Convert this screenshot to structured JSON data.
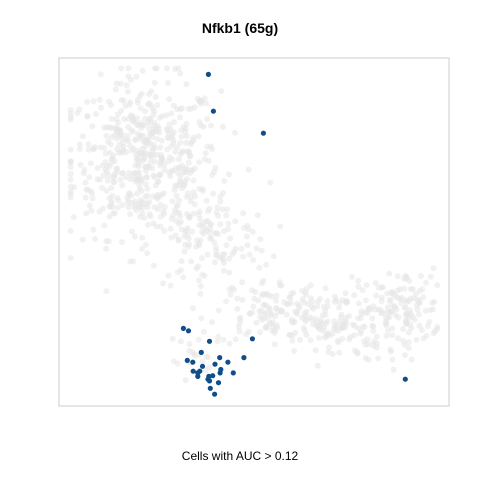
{
  "chart_data": {
    "type": "scatter",
    "title": "Nfkb1 (65g)",
    "xlabel": "Cells with AUC > 0.12",
    "ylabel": "",
    "xlim": [
      0,
      100
    ],
    "ylim": [
      0,
      100
    ],
    "grid": false,
    "colors": {
      "background_cells": "#e6e6e6",
      "highlighted_cells": "#104e8b",
      "frame": "#cccccc"
    },
    "series": [
      {
        "role": "all-cells",
        "clusters": [
          {
            "cx": 22,
            "cy": 71,
            "sx": 12,
            "sy": 14,
            "n": 520
          },
          {
            "cx": 38,
            "cy": 48,
            "sx": 10,
            "sy": 10,
            "n": 140
          },
          {
            "cx": 53,
            "cy": 27,
            "sx": 8,
            "sy": 6,
            "n": 90
          },
          {
            "cx": 70,
            "cy": 24,
            "sx": 10,
            "sy": 7,
            "n": 160
          },
          {
            "cx": 88,
            "cy": 28,
            "sx": 6,
            "sy": 7,
            "n": 120
          },
          {
            "cx": 36,
            "cy": 13,
            "sx": 5,
            "sy": 5,
            "n": 20
          }
        ]
      },
      {
        "role": "selected-cells",
        "x": [
          38.3,
          39.6,
          52.4,
          31.9,
          33.2,
          38.6,
          49.6,
          36.5,
          32.9,
          34.3,
          36.8,
          41.2,
          40.0,
          47.4,
          43.3,
          41.5,
          34.4,
          35.6,
          38.4,
          39.4,
          38.2,
          40.9,
          38.6,
          44.7,
          41.3,
          38.8,
          36.1,
          35.6,
          39.9,
          88.8
        ],
        "y": [
          95.3,
          84.7,
          78.4,
          22.3,
          21.6,
          18.6,
          19.3,
          15.4,
          13.1,
          12.6,
          11.4,
          13.9,
          12.0,
          13.9,
          12.6,
          10.5,
          10.0,
          9.5,
          8.5,
          8.7,
          7.7,
          6.7,
          7.2,
          9.5,
          9.5,
          5.1,
          10.0,
          8.5,
          3.4,
          7.7
        ]
      }
    ]
  }
}
